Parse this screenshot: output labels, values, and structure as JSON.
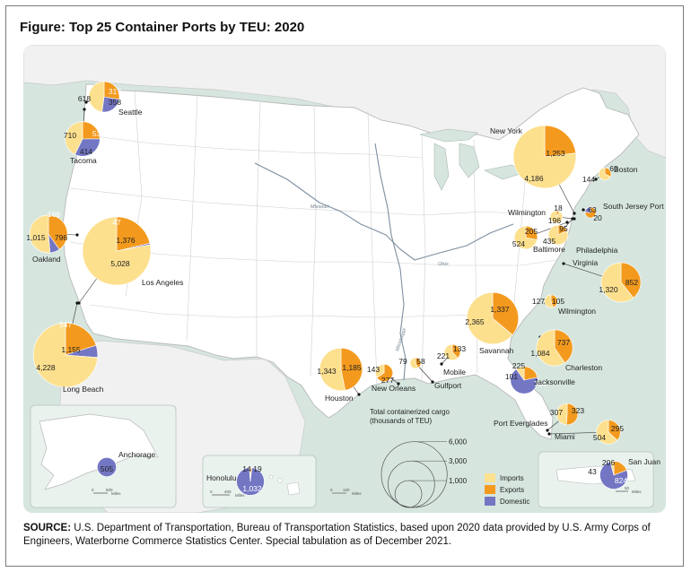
{
  "title": "Figure: Top 25 Container Ports by TEU: 2020",
  "source": {
    "label": "SOURCE:",
    "text": "U.S. Department of Transportation, Bureau of Transportation Statistics, based upon 2020 data provided by U.S. Army Corps of Engineers, Waterborne Commerce Statistics Center. Special tabulation as of December 2021."
  },
  "colors": {
    "imports": "#fde08e",
    "exports": "#f39a1e",
    "domestic": "#7376c3",
    "land": "#ffffff",
    "water": "#d6e6df",
    "inset_bg": "#eaf2ee"
  },
  "legend": {
    "size_title_1": "Total containerized cargo",
    "size_title_2": "(thousands of TEU)",
    "size_values": [
      6000,
      3000,
      1000
    ],
    "size_labels": [
      "6,000",
      "3,000",
      "1,000"
    ],
    "categories": [
      {
        "key": "imports",
        "label": "Imports"
      },
      {
        "key": "exports",
        "label": "Exports"
      },
      {
        "key": "domestic",
        "label": "Domestic"
      }
    ]
  },
  "rivers": [
    "Missouri",
    "Ohio",
    "Mississippi"
  ],
  "scale_bars": [
    {
      "text_0": "0",
      "text_end": "500",
      "unit": "Miles"
    },
    {
      "text_0": "0",
      "text_end": "400",
      "unit": "Miles"
    },
    {
      "text_0": "0",
      "text_end": "100",
      "unit": "Miles"
    },
    {
      "text_0": "0",
      "text_end": "50",
      "unit": "Miles"
    }
  ],
  "ports": [
    {
      "name": "Seattle",
      "imports": 618,
      "exports": 358,
      "domestic": 317
    },
    {
      "name": "Tacoma",
      "imports": 710,
      "exports": 414,
      "domestic": 539
    },
    {
      "name": "Oakland",
      "imports": 1015,
      "exports": 796,
      "domestic": 166
    },
    {
      "name": "Los Angeles",
      "imports": 5028,
      "exports": 1376,
      "domestic": 47
    },
    {
      "name": "Long Beach",
      "imports": 4228,
      "exports": 1155,
      "domestic": 347
    },
    {
      "name": "New York",
      "imports": 4186,
      "exports": 1253,
      "domestic": 0
    },
    {
      "name": "Boston",
      "imports": 144,
      "exports": 69,
      "domestic": 0
    },
    {
      "name": "South Jersey Port Corp.",
      "imports": 0,
      "exports": 63,
      "domestic": 20
    },
    {
      "name": "Wilmington",
      "imports": 196,
      "exports": 18,
      "domestic": 0
    },
    {
      "name": "Baltimore",
      "imports": 524,
      "exports": 205,
      "domestic": 0
    },
    {
      "name": "Philadelphia",
      "imports": 435,
      "exports": 95,
      "domestic": 0
    },
    {
      "name": "Virginia",
      "imports": 1320,
      "exports": 852,
      "domestic": 0
    },
    {
      "name": "Wilmington",
      "imports": 127,
      "exports": 105,
      "domestic": 0
    },
    {
      "name": "Savannah",
      "imports": 2365,
      "exports": 1337,
      "domestic": 0
    },
    {
      "name": "Charleston",
      "imports": 1084,
      "exports": 737,
      "domestic": 0
    },
    {
      "name": "Jacksonville",
      "imports": 101,
      "exports": 225,
      "domestic": 704
    },
    {
      "name": "Port Everglades",
      "imports": 307,
      "exports": 323,
      "domestic": 0
    },
    {
      "name": "Miami",
      "imports": 504,
      "exports": 295,
      "domestic": 0
    },
    {
      "name": "Houston",
      "imports": 1343,
      "exports": 1185,
      "domestic": 0
    },
    {
      "name": "New Orleans",
      "imports": 143,
      "exports": 277,
      "domestic": 0
    },
    {
      "name": "Mobile",
      "imports": 221,
      "exports": 133,
      "domestic": 0
    },
    {
      "name": "Gulfport",
      "imports": 79,
      "exports": 58,
      "domestic": 0
    },
    {
      "name": "Anchorage",
      "imports": 0,
      "exports": 0,
      "domestic": 505
    },
    {
      "name": "Honolulu",
      "imports": 14,
      "exports": 19,
      "domestic": 1032
    },
    {
      "name": "San Juan",
      "imports": 43,
      "exports": 206,
      "domestic": 824
    }
  ]
}
